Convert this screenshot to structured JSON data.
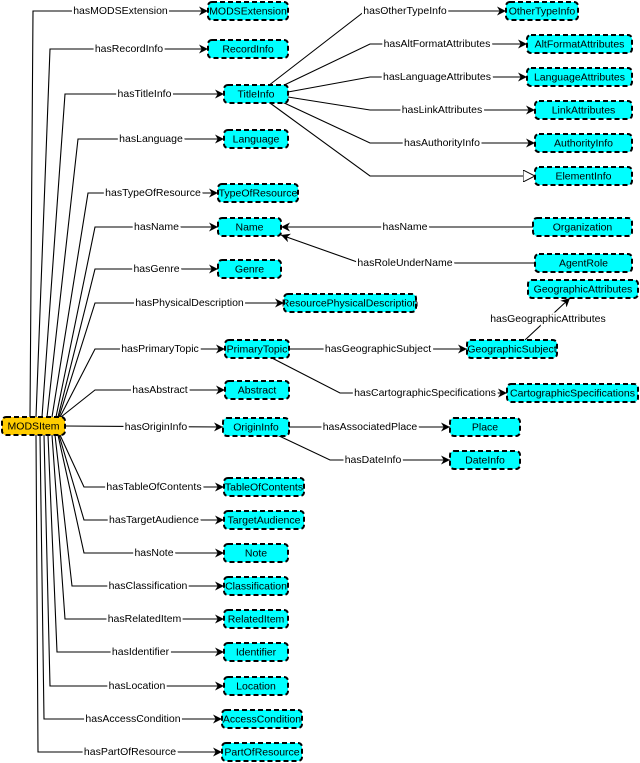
{
  "colors": {
    "root_fill": "#ffcc00",
    "node_fill": "#00ffff",
    "stroke": "#000000"
  },
  "nodes": [
    {
      "id": "MODSItem",
      "label": "MODSItem",
      "root": true
    },
    {
      "id": "MODSExtension",
      "label": "MODSExtension"
    },
    {
      "id": "RecordInfo",
      "label": "RecordInfo"
    },
    {
      "id": "TitleInfo",
      "label": "TitleInfo"
    },
    {
      "id": "Language",
      "label": "Language"
    },
    {
      "id": "TypeOfResource",
      "label": "TypeOfResource"
    },
    {
      "id": "Name",
      "label": "Name"
    },
    {
      "id": "Genre",
      "label": "Genre"
    },
    {
      "id": "ResourcePhysicalDescription",
      "label": "ResourcePhysicalDescription"
    },
    {
      "id": "PrimaryTopic",
      "label": "PrimaryTopic"
    },
    {
      "id": "Abstract",
      "label": "Abstract"
    },
    {
      "id": "OriginInfo",
      "label": "OriginInfo"
    },
    {
      "id": "TableOfContents",
      "label": "TableOfContents"
    },
    {
      "id": "TargetAudience",
      "label": "TargetAudience"
    },
    {
      "id": "Note",
      "label": "Note"
    },
    {
      "id": "Classification",
      "label": "Classification"
    },
    {
      "id": "RelatedItem",
      "label": "RelatedItem"
    },
    {
      "id": "Identifier",
      "label": "Identifier"
    },
    {
      "id": "Location",
      "label": "Location"
    },
    {
      "id": "AccessCondition",
      "label": "AccessCondition"
    },
    {
      "id": "PartOfResource",
      "label": "PartOfResource"
    },
    {
      "id": "OtherTypeInfo",
      "label": "OtherTypeInfo"
    },
    {
      "id": "AltFormatAttributes",
      "label": "AltFormatAttributes"
    },
    {
      "id": "LanguageAttributes",
      "label": "LanguageAttributes"
    },
    {
      "id": "LinkAttributes",
      "label": "LinkAttributes"
    },
    {
      "id": "AuthorityInfo",
      "label": "AuthorityInfo"
    },
    {
      "id": "ElementInfo",
      "label": "ElementInfo"
    },
    {
      "id": "Organization",
      "label": "Organization"
    },
    {
      "id": "AgentRole",
      "label": "AgentRole"
    },
    {
      "id": "GeographicAttributes",
      "label": "GeographicAttributes"
    },
    {
      "id": "GeographicSubject",
      "label": "GeographicSubject"
    },
    {
      "id": "CartographicSpecifications",
      "label": "CartographicSpecifications"
    },
    {
      "id": "Place",
      "label": "Place"
    },
    {
      "id": "DateInfo",
      "label": "DateInfo"
    }
  ],
  "edges": [
    {
      "from": "MODSItem",
      "to": "MODSExtension",
      "label": "hasMODSExtension"
    },
    {
      "from": "MODSItem",
      "to": "RecordInfo",
      "label": "hasRecordInfo"
    },
    {
      "from": "MODSItem",
      "to": "TitleInfo",
      "label": "hasTitleInfo"
    },
    {
      "from": "MODSItem",
      "to": "Language",
      "label": "hasLanguage"
    },
    {
      "from": "MODSItem",
      "to": "TypeOfResource",
      "label": "hasTypeOfResource"
    },
    {
      "from": "MODSItem",
      "to": "Name",
      "label": "hasName"
    },
    {
      "from": "MODSItem",
      "to": "Genre",
      "label": "hasGenre"
    },
    {
      "from": "MODSItem",
      "to": "ResourcePhysicalDescription",
      "label": "hasPhysicalDescription"
    },
    {
      "from": "MODSItem",
      "to": "PrimaryTopic",
      "label": "hasPrimaryTopic"
    },
    {
      "from": "MODSItem",
      "to": "Abstract",
      "label": "hasAbstract"
    },
    {
      "from": "MODSItem",
      "to": "OriginInfo",
      "label": "hasOriginInfo"
    },
    {
      "from": "MODSItem",
      "to": "TableOfContents",
      "label": "hasTableOfContents"
    },
    {
      "from": "MODSItem",
      "to": "TargetAudience",
      "label": "hasTargetAudience"
    },
    {
      "from": "MODSItem",
      "to": "Note",
      "label": "hasNote"
    },
    {
      "from": "MODSItem",
      "to": "Classification",
      "label": "hasClassification"
    },
    {
      "from": "MODSItem",
      "to": "RelatedItem",
      "label": "hasRelatedItem"
    },
    {
      "from": "MODSItem",
      "to": "Identifier",
      "label": "hasIdentifier"
    },
    {
      "from": "MODSItem",
      "to": "Location",
      "label": "hasLocation"
    },
    {
      "from": "MODSItem",
      "to": "AccessCondition",
      "label": "hasAccessCondition"
    },
    {
      "from": "MODSItem",
      "to": "PartOfResource",
      "label": "hasPartOfResource"
    },
    {
      "from": "TitleInfo",
      "to": "OtherTypeInfo",
      "label": "hasOtherTypeInfo"
    },
    {
      "from": "TitleInfo",
      "to": "AltFormatAttributes",
      "label": "hasAltFormatAttributes"
    },
    {
      "from": "TitleInfo",
      "to": "LanguageAttributes",
      "label": "hasLanguageAttributes"
    },
    {
      "from": "TitleInfo",
      "to": "LinkAttributes",
      "label": "hasLinkAttributes"
    },
    {
      "from": "TitleInfo",
      "to": "AuthorityInfo",
      "label": "hasAuthorityInfo"
    },
    {
      "from": "TitleInfo",
      "to": "ElementInfo",
      "label": "",
      "kind": "subclass"
    },
    {
      "from": "Organization",
      "to": "Name",
      "label": "hasName"
    },
    {
      "from": "AgentRole",
      "to": "Name",
      "label": "hasRoleUnderName"
    },
    {
      "from": "PrimaryTopic",
      "to": "GeographicSubject",
      "label": "hasGeographicSubject"
    },
    {
      "from": "PrimaryTopic",
      "to": "CartographicSpecifications",
      "label": "hasCartographicSpecifications"
    },
    {
      "from": "GeographicSubject",
      "to": "GeographicAttributes",
      "label": "hasGeographicAttributes"
    },
    {
      "from": "OriginInfo",
      "to": "Place",
      "label": "hasAssociatedPlace"
    },
    {
      "from": "OriginInfo",
      "to": "DateInfo",
      "label": "hasDateInfo"
    }
  ]
}
